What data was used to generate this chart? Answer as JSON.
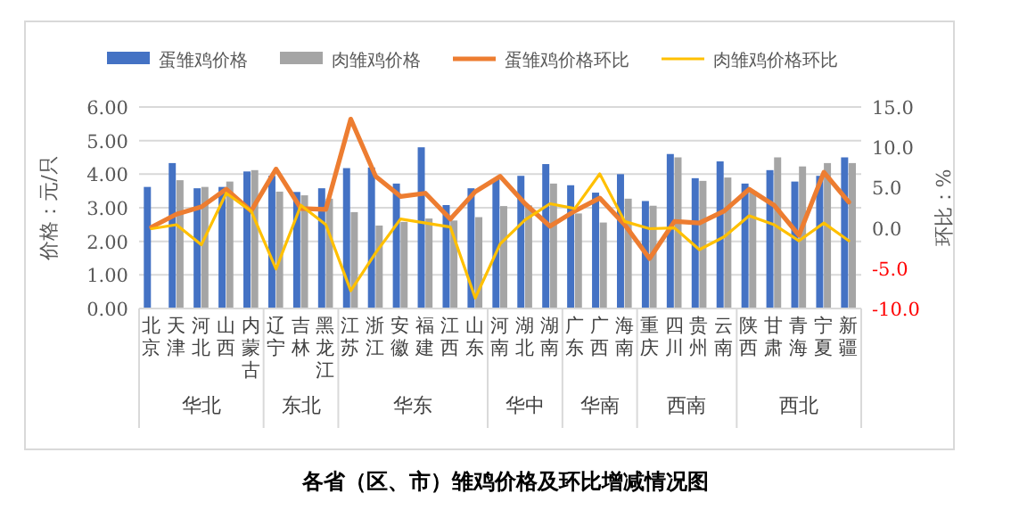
{
  "chart_data": {
    "type": "bar",
    "title": "各省（区、市）雏鸡价格及环比增减情况图",
    "ylabel": "价格：元/只",
    "y2label": "环比：%",
    "categories": [
      "北京",
      "天津",
      "河北",
      "山西",
      "内蒙古",
      "辽宁",
      "吉林",
      "黑龙江",
      "江苏",
      "浙江",
      "安徽",
      "福建",
      "江西",
      "山东",
      "河南",
      "湖北",
      "湖南",
      "广东",
      "广西",
      "海南",
      "重庆",
      "四川",
      "贵州",
      "云南",
      "陕西",
      "甘肃",
      "青海",
      "宁夏",
      "新疆"
    ],
    "annotations": [
      "华北",
      "东北",
      "华东",
      "华中",
      "华南",
      "西南",
      "西北"
    ],
    "series": [
      {
        "name": "蛋雏鸡价格",
        "color": "#4472c4",
        "values": [
          3.62,
          4.33,
          3.58,
          3.62,
          4.08,
          3.95,
          3.47,
          3.58,
          4.18,
          4.2,
          3.72,
          4.8,
          3.08,
          3.58,
          3.85,
          3.95,
          4.3,
          3.67,
          3.45,
          4.0,
          3.2,
          4.6,
          3.88,
          4.38,
          3.72,
          4.12,
          3.78,
          3.95,
          4.5
        ]
      },
      {
        "name": "肉雏鸡价格",
        "color": "#a5a5a5",
        "values": [
          null,
          3.82,
          3.62,
          3.78,
          4.12,
          3.48,
          3.37,
          3.27,
          2.87,
          2.47,
          2.58,
          2.68,
          2.62,
          2.72,
          3.05,
          3.07,
          3.72,
          2.83,
          2.56,
          3.27,
          3.06,
          4.5,
          3.8,
          3.9,
          3.5,
          4.5,
          4.23,
          4.33,
          4.33
        ]
      },
      {
        "name": "蛋雏鸡价格环比",
        "type": "line",
        "axis": "y2",
        "color": "#ed7d31",
        "values": [
          0.1,
          1.7,
          2.6,
          4.8,
          2.1,
          7.3,
          2.4,
          2.3,
          13.5,
          6.4,
          3.9,
          4.3,
          1.1,
          4.5,
          6.4,
          3.0,
          0.2,
          2.1,
          3.7,
          0.4,
          -3.8,
          0.8,
          0.6,
          2.1,
          4.8,
          2.8,
          -0.9,
          6.9,
          3.2
        ]
      },
      {
        "name": "肉雏鸡价格环比",
        "type": "line",
        "axis": "y2",
        "color": "#ffc000",
        "values": [
          -0.1,
          0.4,
          -2.1,
          4.3,
          2.1,
          -5.1,
          2.8,
          0.4,
          -7.8,
          -3.1,
          1.1,
          0.6,
          0.1,
          -8.7,
          -2.0,
          1.0,
          3.0,
          2.4,
          6.7,
          0.8,
          -0.1,
          0.0,
          -2.7,
          -1.1,
          1.5,
          0.4,
          -1.6,
          0.6,
          -1.6
        ]
      }
    ],
    "ylim": [
      0,
      6
    ],
    "yticks": [
      {
        "value": 0,
        "label": "0.00"
      },
      {
        "value": 1,
        "label": "1.00"
      },
      {
        "value": 2,
        "label": "2.00"
      },
      {
        "value": 3,
        "label": "3.00"
      },
      {
        "value": 4,
        "label": "4.00"
      },
      {
        "value": 5,
        "label": "5.00"
      },
      {
        "value": 6,
        "label": "6.00"
      }
    ],
    "y2lim": [
      -10,
      15
    ],
    "y2ticks": [
      {
        "value": -10,
        "label": "-10.0"
      },
      {
        "value": -5,
        "label": "-5.0"
      },
      {
        "value": 0,
        "label": "0.0"
      },
      {
        "value": 5,
        "label": "5.0"
      },
      {
        "value": 10,
        "label": "10.0"
      },
      {
        "value": 15,
        "label": "15.0"
      }
    ],
    "grid": "y",
    "legend": "top"
  }
}
